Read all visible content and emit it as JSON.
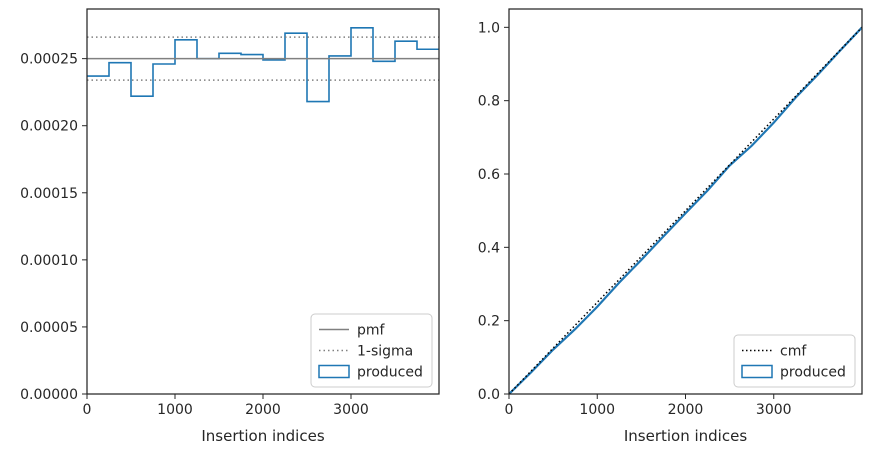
{
  "chart_data": [
    {
      "type": "histogram-step",
      "xlabel": "Insertion indices",
      "ylabel": "",
      "xlim": [
        0,
        4000
      ],
      "ylim": [
        0,
        0.000287
      ],
      "xticks": [
        0,
        1000,
        2000,
        3000
      ],
      "xtick_labels": [
        "0",
        "1000",
        "2000",
        "3000"
      ],
      "yticks": [
        0,
        5e-05,
        0.0001,
        0.00015,
        0.0002,
        0.00025
      ],
      "ytick_labels": [
        "0.00000",
        "0.00005",
        "0.00010",
        "0.00015",
        "0.00020",
        "0.00025"
      ],
      "bin_edges": [
        0,
        250,
        500,
        750,
        1000,
        1250,
        1500,
        1750,
        2000,
        2250,
        2500,
        2750,
        3000,
        3250,
        3500,
        3750,
        4000
      ],
      "series": [
        {
          "name": "produced",
          "kind": "step",
          "color": "#1f77b4",
          "values": [
            0.000237,
            0.000247,
            0.000222,
            0.000246,
            0.000264,
            0.00025,
            0.000254,
            0.000253,
            0.000249,
            0.000269,
            0.000218,
            0.000252,
            0.000273,
            0.000248,
            0.000263,
            0.000257
          ]
        },
        {
          "name": "pmf",
          "kind": "hline",
          "color": "#808080",
          "value": 0.00025
        },
        {
          "name": "1-sigma",
          "kind": "hline-dotted",
          "color": "#808080",
          "values": [
            0.000266,
            0.000234
          ]
        }
      ],
      "legend": {
        "position": "lower-right",
        "entries": [
          "pmf",
          "1-sigma",
          "produced"
        ]
      },
      "grid": false
    },
    {
      "type": "line",
      "xlabel": "Insertion indices",
      "ylabel": "",
      "xlim": [
        0,
        4000
      ],
      "ylim": [
        0,
        1.05
      ],
      "xticks": [
        0,
        1000,
        2000,
        3000
      ],
      "xtick_labels": [
        "0",
        "1000",
        "2000",
        "3000"
      ],
      "yticks": [
        0,
        0.2,
        0.4,
        0.6,
        0.8,
        1.0
      ],
      "ytick_labels": [
        "0.0",
        "0.2",
        "0.4",
        "0.6",
        "0.8",
        "1.0"
      ],
      "series": [
        {
          "name": "produced",
          "kind": "step",
          "color": "#1f77b4",
          "x": [
            0,
            250,
            500,
            750,
            1000,
            1250,
            1500,
            1750,
            2000,
            2250,
            2500,
            2750,
            3000,
            3250,
            3500,
            3750,
            4000
          ],
          "y": [
            0,
            0.059,
            0.121,
            0.177,
            0.238,
            0.304,
            0.366,
            0.43,
            0.493,
            0.555,
            0.623,
            0.677,
            0.74,
            0.809,
            0.871,
            0.936,
            1.0
          ]
        },
        {
          "name": "cmf",
          "kind": "dotted",
          "color": "#000000",
          "x": [
            0,
            4000
          ],
          "y": [
            0,
            1.0
          ]
        }
      ],
      "legend": {
        "position": "lower-right",
        "entries": [
          "cmf",
          "produced"
        ]
      },
      "grid": false
    }
  ]
}
